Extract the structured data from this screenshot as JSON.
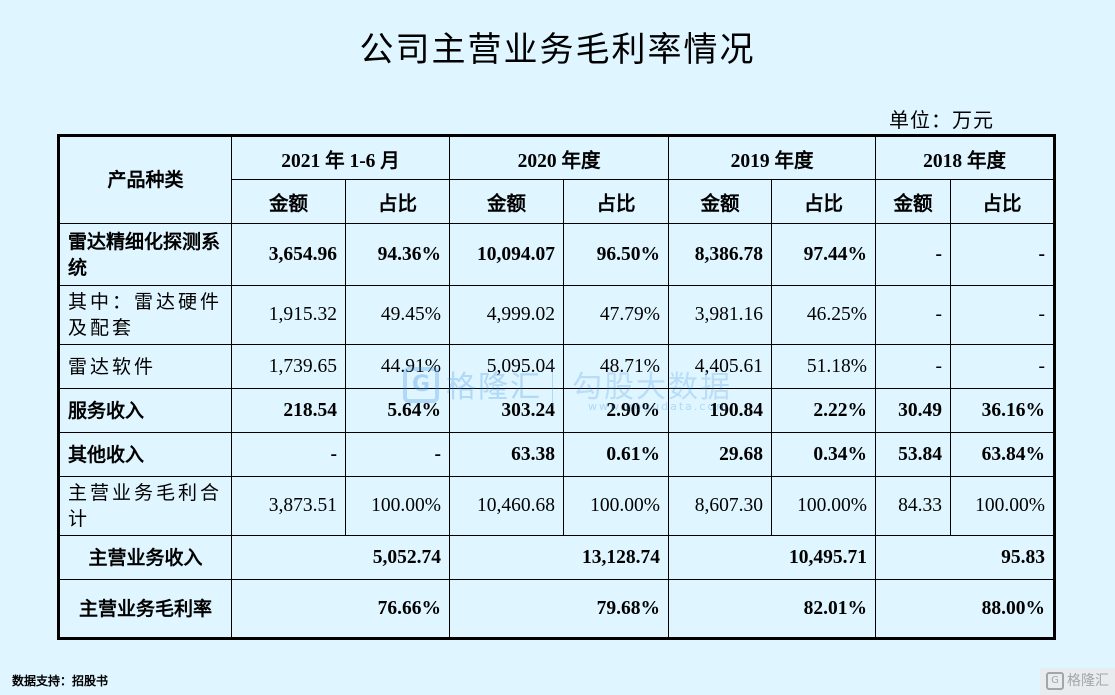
{
  "title": "公司主营业务毛利率情况",
  "unit": "单位：万元",
  "watermark": {
    "logo_letter": "G",
    "name_a": "格隆汇",
    "name_b": "勾股大数据",
    "url": "www.gogudata.com"
  },
  "table": {
    "header": {
      "product": "产品种类",
      "periods": [
        "2021 年 1-6 月",
        "2020 年度",
        "2019 年度",
        "2018 年度"
      ],
      "amount": "金额",
      "ratio": "占比"
    },
    "rows": [
      {
        "label": "雷达精细化探测系统",
        "cells": [
          "3,654.96",
          "94.36%",
          "10,094.07",
          "96.50%",
          "8,386.78",
          "97.44%",
          "-",
          "-"
        ]
      },
      {
        "label": "其中：雷达硬件及配套",
        "cells": [
          "1,915.32",
          "49.45%",
          "4,999.02",
          "47.79%",
          "3,981.16",
          "46.25%",
          "-",
          "-"
        ]
      },
      {
        "label": "雷达软件",
        "cells": [
          "1,739.65",
          "44.91%",
          "5,095.04",
          "48.71%",
          "4,405.61",
          "51.18%",
          "-",
          "-"
        ]
      },
      {
        "label": "服务收入",
        "cells": [
          "218.54",
          "5.64%",
          "303.24",
          "2.90%",
          "190.84",
          "2.22%",
          "30.49",
          "36.16%"
        ]
      },
      {
        "label": "其他收入",
        "cells": [
          "-",
          "-",
          "63.38",
          "0.61%",
          "29.68",
          "0.34%",
          "53.84",
          "63.84%"
        ]
      },
      {
        "label": "主营业务毛利合计",
        "cells": [
          "3,873.51",
          "100.00%",
          "10,460.68",
          "100.00%",
          "8,607.30",
          "100.00%",
          "84.33",
          "100.00%"
        ]
      }
    ],
    "revenue": {
      "label": "主营业务收入",
      "values": [
        "5,052.74",
        "13,128.74",
        "10,495.71",
        "95.83"
      ]
    },
    "margin": {
      "label": "主营业务毛利率",
      "values": [
        "76.66%",
        "79.68%",
        "82.01%",
        "88.00%"
      ]
    }
  },
  "footer": "数据支持：招股书",
  "logo": {
    "letter": "G",
    "name": "格隆汇"
  }
}
